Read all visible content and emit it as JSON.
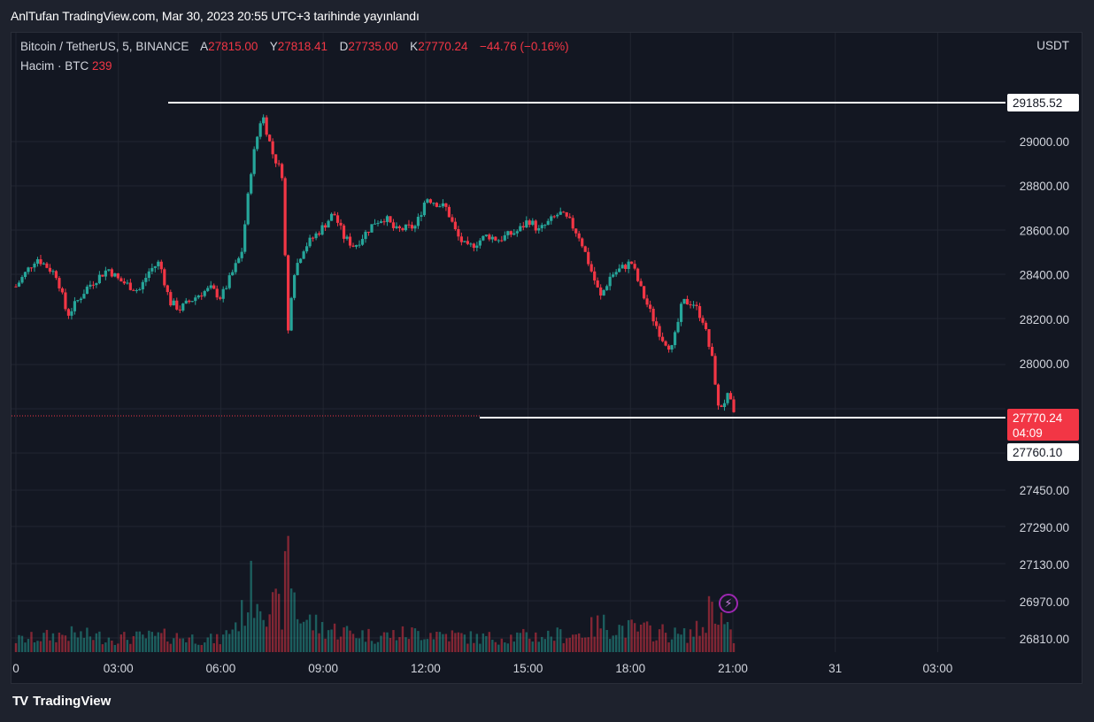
{
  "header": {
    "title": "AnlTufan TradingView.com, Mar 30, 2023 20:55 UTC+3 tarihinde yayınlandı"
  },
  "symbol_bar": {
    "symbol": "Bitcoin / TetherUS, 5, BINANCE",
    "open_label": "A",
    "open": "27815.00",
    "high_label": "Y",
    "high": "27818.41",
    "low_label": "D",
    "low": "27735.00",
    "close_label": "K",
    "close": "27770.24",
    "change": "−44.76 (−0.16%)"
  },
  "volume_bar": {
    "label": "Hacim · BTC",
    "value": "239"
  },
  "currency": "USDT",
  "price_labels": {
    "upper_line": "29185.52",
    "last_price": "27770.24",
    "countdown": "04:09",
    "lower_line": "27760.10"
  },
  "footer": {
    "brand": "TradingView",
    "logo": "TV"
  },
  "icons": {
    "flash": "lightning-icon"
  },
  "colors": {
    "up": "#26a69a",
    "down": "#f23645",
    "bg": "#131722",
    "line": "#ffffff"
  },
  "chart_data": {
    "type": "candlestick",
    "title": "Bitcoin / TetherUS, 5, BINANCE",
    "x_ticks": [
      "0",
      "03:00",
      "06:00",
      "09:00",
      "12:00",
      "15:00",
      "18:00",
      "21:00",
      "31",
      "03:00"
    ],
    "y_ticks_price": [
      "29000.00",
      "28800.00",
      "28600.00",
      "28400.00",
      "28200.00",
      "28000.00"
    ],
    "y_ticks_volume_axis": [
      "27450.00",
      "27290.00",
      "27130.00",
      "26970.00",
      "26810.00"
    ],
    "ylim": [
      27500,
      29400
    ],
    "horizontal_lines": [
      29185.52,
      27760.1
    ],
    "last_price": 27770.24,
    "close_path": [
      [
        0,
        28350
      ],
      [
        4,
        28480
      ],
      [
        8,
        28400
      ],
      [
        10,
        28220
      ],
      [
        14,
        28350
      ],
      [
        18,
        28430
      ],
      [
        20,
        28380
      ],
      [
        24,
        28330
      ],
      [
        26,
        28420
      ],
      [
        28,
        28460
      ],
      [
        30,
        28280
      ],
      [
        32,
        28250
      ],
      [
        36,
        28320
      ],
      [
        38,
        28340
      ],
      [
        40,
        28300
      ],
      [
        44,
        28500
      ],
      [
        46,
        28900
      ],
      [
        48,
        29130
      ],
      [
        50,
        28950
      ],
      [
        52,
        28850
      ],
      [
        53,
        28120
      ],
      [
        54,
        28400
      ],
      [
        56,
        28520
      ],
      [
        60,
        28620
      ],
      [
        62,
        28680
      ],
      [
        64,
        28570
      ],
      [
        66,
        28530
      ],
      [
        70,
        28640
      ],
      [
        72,
        28660
      ],
      [
        74,
        28600
      ],
      [
        78,
        28620
      ],
      [
        80,
        28750
      ],
      [
        84,
        28700
      ],
      [
        86,
        28580
      ],
      [
        88,
        28520
      ],
      [
        92,
        28580
      ],
      [
        94,
        28560
      ],
      [
        98,
        28600
      ],
      [
        100,
        28650
      ],
      [
        102,
        28600
      ],
      [
        106,
        28680
      ],
      [
        108,
        28640
      ],
      [
        110,
        28570
      ],
      [
        114,
        28300
      ],
      [
        116,
        28400
      ],
      [
        118,
        28430
      ],
      [
        120,
        28460
      ],
      [
        122,
        28330
      ],
      [
        124,
        28220
      ],
      [
        126,
        28120
      ],
      [
        128,
        28070
      ],
      [
        130,
        28280
      ],
      [
        132,
        28280
      ],
      [
        134,
        28200
      ],
      [
        136,
        28000
      ],
      [
        137,
        27800
      ],
      [
        139,
        27860
      ],
      [
        140,
        27770
      ]
    ],
    "volume_path": [
      [
        0,
        30
      ],
      [
        10,
        45
      ],
      [
        20,
        35
      ],
      [
        30,
        40
      ],
      [
        40,
        30
      ],
      [
        44,
        90
      ],
      [
        46,
        160
      ],
      [
        48,
        140
      ],
      [
        50,
        110
      ],
      [
        52,
        100
      ],
      [
        53,
        250
      ],
      [
        55,
        90
      ],
      [
        60,
        60
      ],
      [
        70,
        40
      ],
      [
        80,
        50
      ],
      [
        90,
        35
      ],
      [
        100,
        40
      ],
      [
        110,
        45
      ],
      [
        114,
        70
      ],
      [
        118,
        60
      ],
      [
        122,
        55
      ],
      [
        126,
        50
      ],
      [
        130,
        40
      ],
      [
        134,
        60
      ],
      [
        136,
        140
      ],
      [
        138,
        70
      ],
      [
        140,
        30
      ]
    ]
  }
}
